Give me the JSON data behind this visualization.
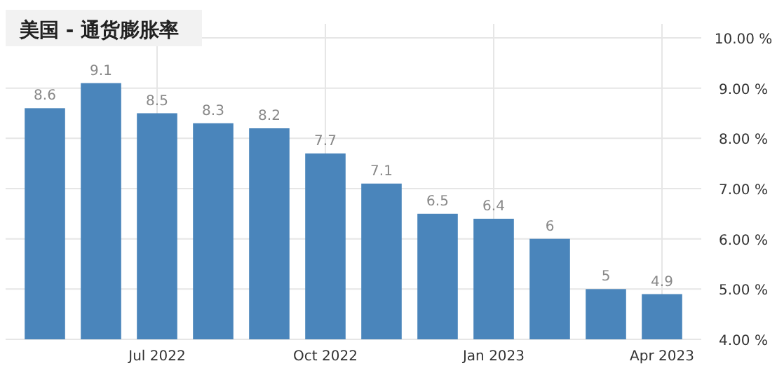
{
  "chart_data": {
    "type": "bar",
    "title": "美国 - 通货膨胀率",
    "categories": [
      null,
      null,
      "Jul 2022",
      null,
      null,
      "Oct 2022",
      null,
      null,
      "Jan 2023",
      null,
      null,
      "Apr 2023"
    ],
    "values": [
      8.6,
      9.1,
      8.5,
      8.3,
      8.2,
      7.7,
      7.1,
      6.5,
      6.4,
      6,
      5,
      4.9
    ],
    "color": "#4a85bb",
    "data_labels": true,
    "grid": true,
    "ylim": [
      4,
      10
    ],
    "yticks": [
      {
        "value": 4,
        "label": "4.00 %"
      },
      {
        "value": 5,
        "label": "5.00 %"
      },
      {
        "value": 6,
        "label": "6.00 %"
      },
      {
        "value": 7,
        "label": "7.00 %"
      },
      {
        "value": 8,
        "label": "8.00 %"
      },
      {
        "value": 9,
        "label": "9.00 %"
      },
      {
        "value": 10,
        "label": "10.00 %"
      }
    ]
  }
}
